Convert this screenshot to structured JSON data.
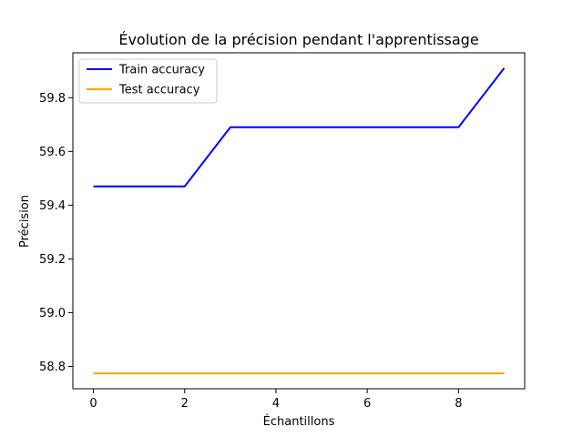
{
  "chart_data": {
    "type": "line",
    "title": "Évolution de la précision pendant l'apprentissage",
    "xlabel": "Échantillons",
    "ylabel": "Précision",
    "x": [
      0,
      1,
      2,
      3,
      4,
      5,
      6,
      7,
      8,
      9
    ],
    "series": [
      {
        "name": "Train accuracy",
        "color": "#0000ff",
        "values": [
          59.47,
          59.47,
          59.47,
          59.69,
          59.69,
          59.69,
          59.69,
          59.69,
          59.69,
          59.91
        ]
      },
      {
        "name": "Test accuracy",
        "color": "#ffa500",
        "values": [
          58.774,
          58.774,
          58.774,
          58.774,
          58.774,
          58.774,
          58.774,
          58.774,
          58.774,
          58.774
        ]
      }
    ],
    "xlim": [
      -0.45,
      9.45
    ],
    "ylim": [
      58.717,
      59.967
    ],
    "xticks": [
      0,
      2,
      4,
      6,
      8
    ],
    "xtick_labels": [
      "0",
      "2",
      "4",
      "6",
      "8"
    ],
    "yticks": [
      58.8,
      59.0,
      59.2,
      59.4,
      59.6,
      59.8
    ],
    "ytick_labels": [
      "58.8",
      "59.0",
      "59.2",
      "59.4",
      "59.6",
      "59.8"
    ],
    "grid": false,
    "legend_position": "upper-left"
  }
}
